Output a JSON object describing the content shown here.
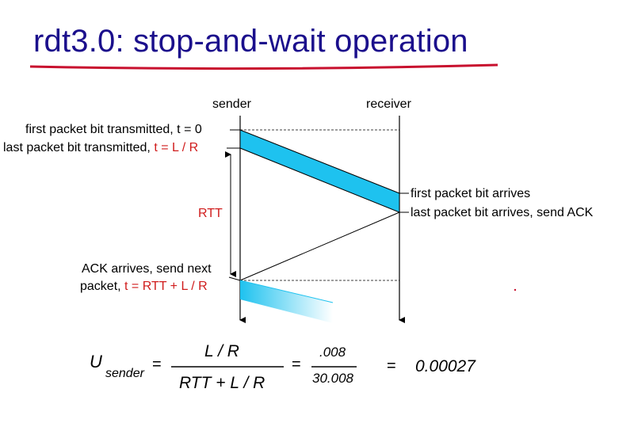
{
  "title": "rdt3.0: stop-and-wait operation",
  "diagram": {
    "sender_label": "sender",
    "receiver_label": "receiver",
    "first_bit_tx": {
      "text": "first packet bit transmitted, t = 0"
    },
    "last_bit_tx": {
      "text": "last packet bit transmitted, ",
      "t": "t = L / R"
    },
    "rtt_label": "RTT",
    "first_bit_arrives": "first packet bit arrives",
    "last_bit_arrives": "last packet bit arrives, send ACK",
    "ack_arrives_line1": "ACK arrives, send next",
    "ack_arrives_line2": "packet, ",
    "ack_arrives_t": "t = RTT + L / R",
    "colors": {
      "packet": "#1ec2ef",
      "title": "#1b0f8c",
      "underline": "#c8102e",
      "highlight": "#d01c1c"
    }
  },
  "formula": {
    "U": "U",
    "sub": "sender",
    "eq1": "=",
    "num1": "L / R",
    "den1": "RTT + L / R",
    "eq2": "=",
    "num2": ".008",
    "den2": "30.008",
    "eq3": "=",
    "result": "0.00027"
  }
}
